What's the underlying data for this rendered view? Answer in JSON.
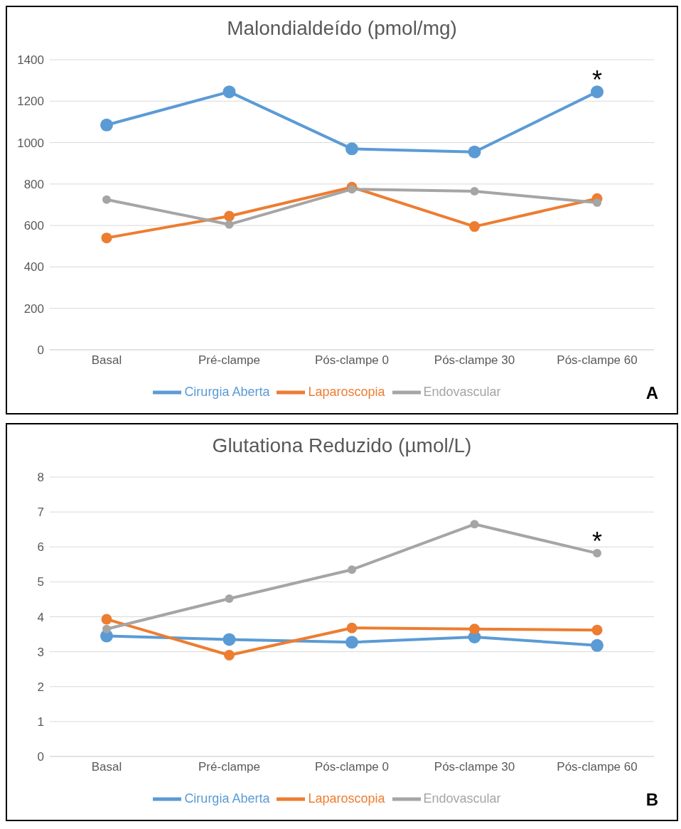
{
  "chart_data": [
    {
      "type": "line",
      "title": "Malondialdeído (pmol/mg)",
      "categories": [
        "Basal",
        "Pré-clampe",
        "Pós-clampe 0",
        "Pós-clampe 30",
        "Pós-clampe 60"
      ],
      "series": [
        {
          "name": "Cirurgia Aberta",
          "color": "#5b9bd5",
          "values": [
            1085,
            1245,
            970,
            955,
            1245
          ]
        },
        {
          "name": "Laparoscopia",
          "color": "#ed7d31",
          "values": [
            540,
            645,
            785,
            595,
            730
          ]
        },
        {
          "name": "Endovascular",
          "color": "#a5a5a5",
          "values": [
            725,
            605,
            775,
            765,
            710
          ]
        }
      ],
      "ylim": [
        0,
        1400
      ],
      "yticks": [
        0,
        200,
        400,
        600,
        800,
        1000,
        1200,
        1400
      ],
      "grid": "y",
      "legend": "bottom",
      "marker": "circle",
      "annotations": [
        {
          "text": "*",
          "x": "Pós-clampe 60",
          "y": 1245
        },
        "A"
      ]
    },
    {
      "type": "line",
      "title": "Glutationa Reduzido (µmol/L)",
      "categories": [
        "Basal",
        "Pré-clampe",
        "Pós-clampe 0",
        "Pós-clampe 30",
        "Pós-clampe 60"
      ],
      "series": [
        {
          "name": "Cirurgia Aberta",
          "color": "#5b9bd5",
          "values": [
            3.45,
            3.35,
            3.27,
            3.42,
            3.18
          ]
        },
        {
          "name": "Laparoscopia",
          "color": "#ed7d31",
          "values": [
            3.93,
            2.9,
            3.68,
            3.65,
            3.62
          ]
        },
        {
          "name": "Endovascular",
          "color": "#a5a5a5",
          "values": [
            3.65,
            4.52,
            5.35,
            6.65,
            5.82
          ]
        }
      ],
      "ylim": [
        0,
        8
      ],
      "yticks": [
        0,
        1,
        2,
        3,
        4,
        5,
        6,
        7,
        8
      ],
      "grid": "y",
      "legend": "bottom",
      "marker": "circle",
      "annotations": [
        {
          "text": "*",
          "x": "Pós-clampe 60",
          "y": 5.82
        },
        "B"
      ]
    }
  ]
}
